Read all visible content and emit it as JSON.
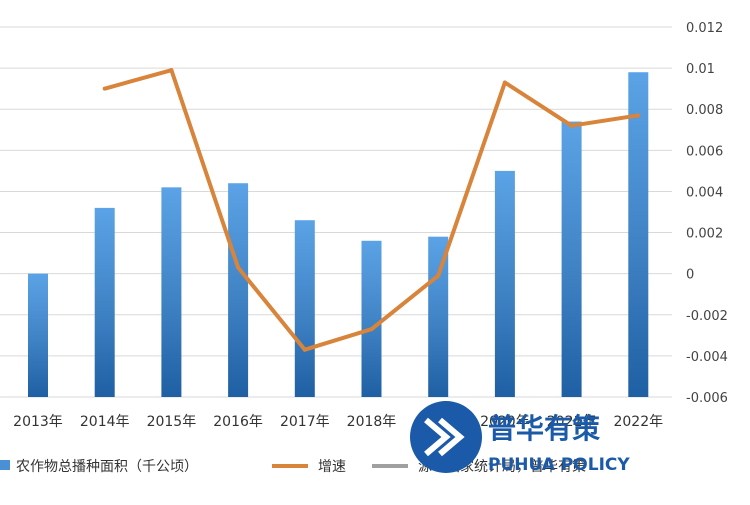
{
  "chart_data": {
    "type": "bar+line",
    "categories": [
      "2013年",
      "2014年",
      "2015年",
      "2016年",
      "2017年",
      "2018年",
      "2019年",
      "2020年",
      "2021年",
      "2022年"
    ],
    "x_tick_labels": [
      "2013年",
      "2014年",
      "2015年",
      "2016年",
      "2017年",
      "2018年",
      "",
      "2020年",
      "2021年",
      "2022年"
    ],
    "series": [
      {
        "name": "农作物总播种面积（千公顷）",
        "type": "bar",
        "color": "#4a90d6",
        "values": [
          165000,
          166600,
          167100,
          167200,
          166300,
          165800,
          165900,
          167500,
          168700,
          169900
        ]
      },
      {
        "name": "增速",
        "type": "line",
        "axis": "right",
        "color": "#d8843a",
        "values": [
          null,
          0.009,
          0.0099,
          0.0003,
          -0.0037,
          -0.0027,
          -0.0001,
          0.0093,
          0.0072,
          0.0077
        ]
      }
    ],
    "y_right": {
      "lim": [
        -0.006,
        0.012
      ],
      "ticks": [
        "-0.006",
        "-0.004",
        "-0.002",
        "0",
        "0.002",
        "0.004",
        "0.006",
        "0.008",
        "0.01",
        "0.012"
      ]
    },
    "grid": true,
    "legend_position": "bottom",
    "legend": [
      {
        "label": "农作物总播种面积（千公顷）",
        "marker": "bar",
        "color": "#4a90d6"
      },
      {
        "label": "增速",
        "marker": "line",
        "color": "#d8843a"
      },
      {
        "label": "源：国家统计局，普华有策",
        "marker": "line",
        "color": "#a0a0a0"
      }
    ]
  },
  "watermark": {
    "text_cn": "普华有策",
    "text_en": "PUHUA POLICY"
  }
}
